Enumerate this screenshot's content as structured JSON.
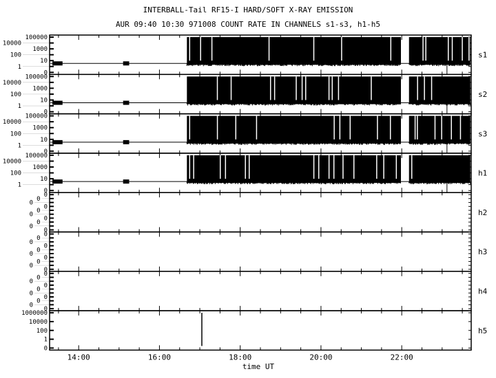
{
  "chart_data": {
    "type": "line",
    "title": "INTERBALL-Tail RF15-I HARD/SOFT X-RAY EMISSION",
    "subtitle": "AUR 09:40 10:30 971008  COUNT RATE IN CHANNELS s1-s3, h1-h5",
    "xlabel": "time UT",
    "x_range_hours": [
      13.28,
      23.72
    ],
    "x_ticks": [
      "14:00",
      "16:00",
      "18:00",
      "20:00",
      "22:00"
    ],
    "x_tick_values": [
      14,
      16,
      18,
      20,
      22
    ],
    "y_scale": "log",
    "panels": [
      {
        "name": "s1",
        "yticks": [
          "100000",
          "10000",
          "1000",
          "100",
          "10",
          "1",
          "0"
        ],
        "baseline": 5,
        "quiet_bursts": [
          [
            13.35,
            13.6
          ],
          [
            15.1,
            15.25
          ]
        ],
        "active_intervals": [
          [
            16.68,
            21.98
          ],
          [
            22.18,
            23.7
          ]
        ],
        "active_max": 100000,
        "spikes": [
          {
            "t": 23.12,
            "value": 0
          }
        ]
      },
      {
        "name": "s2",
        "yticks": [
          "100000",
          "10000",
          "1000",
          "100",
          "10",
          "1",
          "0"
        ],
        "baseline": 5,
        "quiet_bursts": [
          [
            13.35,
            13.6
          ],
          [
            15.1,
            15.25
          ]
        ],
        "active_intervals": [
          [
            16.68,
            21.98
          ],
          [
            22.18,
            23.7
          ]
        ],
        "active_max": 100000,
        "spikes": [
          {
            "t": 23.12,
            "value": 0
          }
        ]
      },
      {
        "name": "s3",
        "yticks": [
          "100000",
          "10000",
          "1000",
          "100",
          "10",
          "1",
          "0"
        ],
        "baseline": 5,
        "quiet_bursts": [
          [
            13.35,
            13.6
          ],
          [
            15.1,
            15.25
          ]
        ],
        "active_intervals": [
          [
            16.68,
            21.98
          ],
          [
            22.18,
            23.7
          ]
        ],
        "active_max": 100000,
        "spikes": [
          {
            "t": 23.12,
            "value": 0
          }
        ]
      },
      {
        "name": "h1",
        "yticks": [
          "100000",
          "10000",
          "1000",
          "100",
          "10",
          "1",
          "0"
        ],
        "baseline": 5,
        "quiet_bursts": [
          [
            13.35,
            13.6
          ],
          [
            15.1,
            15.25
          ]
        ],
        "active_intervals": [
          [
            16.68,
            21.98
          ],
          [
            22.18,
            23.7
          ]
        ],
        "active_max": 100000,
        "spikes": [
          {
            "t": 23.12,
            "value": 0
          }
        ]
      },
      {
        "name": "h2",
        "yticks": [
          "0",
          "0",
          "0",
          "0",
          "0",
          "0",
          "0",
          "0",
          "0",
          "0"
        ],
        "active_intervals": [],
        "spikes": []
      },
      {
        "name": "h3",
        "yticks": [
          "0",
          "0",
          "0",
          "0",
          "0",
          "0",
          "0",
          "0",
          "0",
          "0"
        ],
        "active_intervals": [],
        "spikes": []
      },
      {
        "name": "h4",
        "yticks": [
          "0",
          "0",
          "0",
          "0",
          "0",
          "0",
          "0",
          "0",
          "0",
          "0"
        ],
        "active_intervals": [],
        "spikes": []
      },
      {
        "name": "h5",
        "yticks": [
          "1000000",
          "10000",
          "100",
          "1",
          "0"
        ],
        "active_intervals": [],
        "spikes": [
          {
            "t": 17.05,
            "value": 1000000
          }
        ]
      }
    ],
    "grid": false,
    "colors": {
      "data": "#000000",
      "background": "#ffffff"
    }
  }
}
